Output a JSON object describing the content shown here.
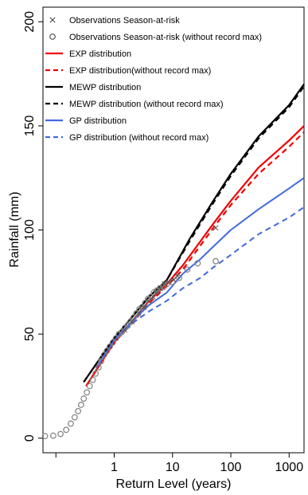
{
  "chart_data": {
    "type": "line",
    "xlabel": "Return Level (years)",
    "ylabel": "Rainfall (mm)",
    "x_scale": "log",
    "xlim": [
      0.06,
      1800
    ],
    "ylim": [
      -7,
      207
    ],
    "x_ticks": [
      1,
      10,
      100,
      1000
    ],
    "x_tick_labels": [
      "1",
      "10",
      "100",
      "1000"
    ],
    "x_minor_ticks": [
      0.1
    ],
    "y_ticks": [
      0,
      50,
      100,
      150,
      200
    ],
    "y_tick_labels": [
      "0",
      "50",
      "100",
      "150",
      "200"
    ],
    "grid": false,
    "legend_position": "top-left",
    "legend": [
      {
        "label": "Observations Season-at-risk",
        "kind": "marker",
        "marker": "x",
        "color": "#333333"
      },
      {
        "label": "Observations Season-at-risk (without record max)",
        "kind": "marker",
        "marker": "o",
        "color": "#555555"
      },
      {
        "label": "EXP distribution",
        "kind": "line",
        "dash": "solid",
        "color": "#ee0000"
      },
      {
        "label": "EXP distribution(without record max)",
        "kind": "line",
        "dash": "dashed",
        "color": "#ee0000"
      },
      {
        "label": "MEWP distribution",
        "kind": "line",
        "dash": "solid",
        "color": "#000000"
      },
      {
        "label": "MEWP distribution (without record max)",
        "kind": "line",
        "dash": "dashed",
        "color": "#000000"
      },
      {
        "label": "GP distribution",
        "kind": "line",
        "dash": "solid",
        "color": "#4169e1"
      },
      {
        "label": "GP distribution (without record max)",
        "kind": "line",
        "dash": "dashed",
        "color": "#4169e1"
      }
    ],
    "series": [
      {
        "name": "MEWP distribution",
        "color": "#000000",
        "dash": "solid",
        "width": 2.2,
        "x": [
          0.3,
          0.5,
          1,
          2,
          4,
          8,
          20,
          50,
          100,
          300,
          1000,
          1800
        ],
        "y": [
          27,
          36,
          48,
          58,
          68,
          76,
          96,
          114,
          127,
          145,
          160,
          170
        ]
      },
      {
        "name": "MEWP distribution (without record max)",
        "color": "#000000",
        "dash": "dashed",
        "width": 2.2,
        "x": [
          0.3,
          0.5,
          1,
          2,
          4,
          8,
          20,
          50,
          100,
          300,
          1000,
          1800
        ],
        "y": [
          27,
          36,
          48,
          58,
          68,
          76,
          95,
          113,
          126,
          144,
          159,
          169
        ]
      },
      {
        "name": "EXP distribution",
        "color": "#ee0000",
        "dash": "solid",
        "width": 2.2,
        "x": [
          0.33,
          0.5,
          1,
          2,
          4,
          8,
          15,
          50,
          100,
          300,
          1000,
          1800
        ],
        "y": [
          25,
          33,
          46,
          56,
          66,
          74,
          83,
          103,
          114,
          130,
          143,
          150
        ]
      },
      {
        "name": "EXP distribution(without record max)",
        "color": "#ee0000",
        "dash": "dashed",
        "width": 2.2,
        "x": [
          0.33,
          0.5,
          1,
          2,
          4,
          8,
          15,
          50,
          100,
          300,
          1000,
          1800
        ],
        "y": [
          25,
          33,
          46,
          55,
          65,
          73,
          81,
          101,
          112,
          127,
          140,
          147
        ]
      },
      {
        "name": "GP distribution",
        "color": "#4169e1",
        "dash": "solid",
        "width": 2.0,
        "x": [
          0.5,
          1,
          2,
          4,
          8,
          15,
          30,
          50,
          100,
          300,
          1000,
          1800
        ],
        "y": [
          34,
          47,
          56,
          64,
          70,
          79,
          86,
          92,
          100,
          110,
          120,
          125
        ]
      },
      {
        "name": "GP distribution (without record max)",
        "color": "#4169e1",
        "dash": "dashed",
        "width": 2.0,
        "x": [
          0.5,
          1,
          2,
          4,
          8,
          15,
          30,
          50,
          100,
          300,
          1000,
          1800
        ],
        "y": [
          34,
          47,
          55,
          61,
          66,
          72,
          77,
          82,
          88,
          98,
          106,
          111
        ]
      },
      {
        "name": "Observations Season-at-risk (without record max)",
        "color": "#808080",
        "marker": "o",
        "x": [
          0.065,
          0.09,
          0.12,
          0.15,
          0.18,
          0.21,
          0.24,
          0.27,
          0.3,
          0.34,
          0.38,
          0.43,
          0.48,
          0.54,
          0.6,
          0.67,
          0.75,
          0.84,
          0.95,
          1.07,
          1.2,
          1.35,
          1.52,
          1.7,
          1.9,
          2.15,
          2.4,
          2.7,
          3.0,
          3.4,
          3.8,
          4.3,
          4.8,
          5.4,
          6.1,
          6.9,
          8.0,
          10,
          13,
          18,
          27,
          55
        ],
        "y": [
          1,
          1.2,
          2,
          4,
          7,
          10,
          13,
          16,
          19,
          22,
          25,
          28,
          31,
          34,
          37,
          40,
          42,
          44,
          46,
          48,
          50,
          51,
          53,
          54,
          56,
          58,
          60,
          62,
          63,
          65,
          67,
          68,
          70,
          71,
          72,
          73,
          74,
          75,
          77,
          81,
          84,
          85
        ]
      },
      {
        "name": "Observations Season-at-risk",
        "color": "#555555",
        "marker": "x",
        "x": [
          1.5,
          2.0,
          2.6,
          3.2,
          3.9,
          4.6,
          5.3,
          6.2,
          7.3,
          8.5,
          10.5,
          12,
          55
        ],
        "y": [
          52,
          56,
          60,
          63,
          66,
          68,
          70,
          72,
          74,
          75,
          76,
          78,
          101
        ]
      }
    ]
  }
}
